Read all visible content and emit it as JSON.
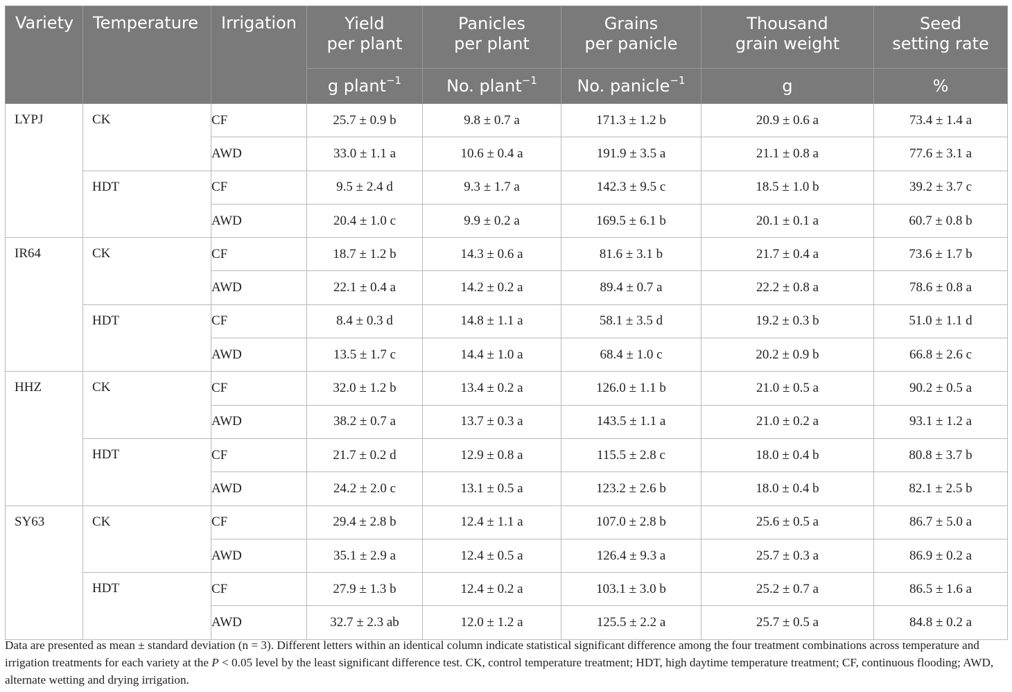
{
  "headers": {
    "variety": "Variety",
    "temperature": "Temperature",
    "irrigation": "Irrigation",
    "columns": [
      {
        "line1": "Yield",
        "line2": "per plant",
        "unit": "g plant",
        "unit_sup": "−1"
      },
      {
        "line1": "Panicles",
        "line2": "per plant",
        "unit": "No. plant",
        "unit_sup": "−1"
      },
      {
        "line1": "Grains",
        "line2": "per panicle",
        "unit": "No. panicle",
        "unit_sup": "−1"
      },
      {
        "line1": "Thousand",
        "line2": "grain weight",
        "unit": "g",
        "unit_sup": ""
      },
      {
        "line1": "Seed",
        "line2": "setting rate",
        "unit": "%",
        "unit_sup": ""
      }
    ]
  },
  "groups": [
    {
      "variety": "LYPJ",
      "temps": [
        {
          "temp": "CK",
          "rows": [
            {
              "irr": "CF",
              "vals": [
                "25.7 ± 0.9 b",
                "9.8 ± 0.7 a",
                "171.3 ± 1.2 b",
                "20.9 ± 0.6 a",
                "73.4 ± 1.4 a"
              ]
            },
            {
              "irr": "AWD",
              "vals": [
                "33.0 ± 1.1 a",
                "10.6 ± 0.4 a",
                "191.9 ± 3.5 a",
                "21.1 ± 0.8 a",
                "77.6 ± 3.1 a"
              ]
            }
          ]
        },
        {
          "temp": "HDT",
          "rows": [
            {
              "irr": "CF",
              "vals": [
                "9.5 ± 2.4 d",
                "9.3 ± 1.7 a",
                "142.3 ± 9.5 c",
                "18.5 ± 1.0 b",
                "39.2 ± 3.7 c"
              ]
            },
            {
              "irr": "AWD",
              "vals": [
                "20.4 ± 1.0 c",
                "9.9 ± 0.2 a",
                "169.5 ± 6.1 b",
                "20.1 ± 0.1 a",
                "60.7 ± 0.8 b"
              ]
            }
          ]
        }
      ]
    },
    {
      "variety": "IR64",
      "temps": [
        {
          "temp": "CK",
          "rows": [
            {
              "irr": "CF",
              "vals": [
                "18.7 ± 1.2 b",
                "14.3 ± 0.6 a",
                "81.6 ± 3.1 b",
                "21.7 ± 0.4 a",
                "73.6 ± 1.7 b"
              ]
            },
            {
              "irr": "AWD",
              "vals": [
                "22.1 ± 0.4 a",
                "14.2 ± 0.2 a",
                "89.4 ± 0.7 a",
                "22.2 ± 0.8 a",
                "78.6 ± 0.8 a"
              ]
            }
          ]
        },
        {
          "temp": "HDT",
          "rows": [
            {
              "irr": "CF",
              "vals": [
                "8.4 ± 0.3 d",
                "14.8 ± 1.1 a",
                "58.1 ± 3.5 d",
                "19.2 ± 0.3 b",
                "51.0 ± 1.1 d"
              ]
            },
            {
              "irr": "AWD",
              "vals": [
                "13.5 ± 1.7 c",
                "14.4 ± 1.0 a",
                "68.4 ± 1.0 c",
                "20.2 ± 0.9 b",
                "66.8 ± 2.6 c"
              ]
            }
          ]
        }
      ]
    },
    {
      "variety": "HHZ",
      "temps": [
        {
          "temp": "CK",
          "rows": [
            {
              "irr": "CF",
              "vals": [
                "32.0 ± 1.2 b",
                "13.4 ± 0.2 a",
                "126.0 ± 1.1 b",
                "21.0 ± 0.5 a",
                "90.2 ± 0.5 a"
              ]
            },
            {
              "irr": "AWD",
              "vals": [
                "38.2 ± 0.7 a",
                "13.7 ± 0.3 a",
                "143.5 ± 1.1 a",
                "21.0 ± 0.2 a",
                "93.1 ± 1.2 a"
              ]
            }
          ]
        },
        {
          "temp": "HDT",
          "rows": [
            {
              "irr": "CF",
              "vals": [
                "21.7 ± 0.2 d",
                "12.9 ± 0.8 a",
                "115.5 ± 2.8 c",
                "18.0 ± 0.4 b",
                "80.8 ± 3.7 b"
              ]
            },
            {
              "irr": "AWD",
              "vals": [
                "24.2 ± 2.0 c",
                "13.1 ± 0.5 a",
                "123.2 ± 2.6 b",
                "18.0 ± 0.4 b",
                "82.1 ± 2.5 b"
              ]
            }
          ]
        }
      ]
    },
    {
      "variety": "SY63",
      "temps": [
        {
          "temp": "CK",
          "rows": [
            {
              "irr": "CF",
              "vals": [
                "29.4 ± 2.8 b",
                "12.4 ± 1.1 a",
                "107.0 ± 2.8 b",
                "25.6 ± 0.5 a",
                "86.7 ± 5.0 a"
              ]
            },
            {
              "irr": "AWD",
              "vals": [
                "35.1 ± 2.9 a",
                "12.4 ± 0.5 a",
                "126.4 ± 9.3 a",
                "25.7 ± 0.3 a",
                "86.9 ± 0.2 a"
              ]
            }
          ]
        },
        {
          "temp": "HDT",
          "rows": [
            {
              "irr": "CF",
              "vals": [
                "27.9 ± 1.3 b",
                "12.4 ± 0.2 a",
                "103.1 ± 3.0 b",
                "25.2 ± 0.7 a",
                "86.5 ± 1.6 a"
              ]
            },
            {
              "irr": "AWD",
              "vals": [
                "32.7 ± 2.3 ab",
                "12.0 ± 1.2 a",
                "125.5 ± 2.2 a",
                "25.7 ± 0.5 a",
                "84.8 ± 0.2 a"
              ]
            }
          ]
        }
      ]
    }
  ],
  "footnote": {
    "part1": "Data are presented as mean ± standard deviation (n = 3). Different letters within an identical column indicate statistical significant difference among the four treatment combinations across temperature and irrigation treatments for each variety at the ",
    "p": "P",
    "part2": " < 0.05 level by the least significant difference test. CK, control temperature treatment; HDT, high daytime temperature treatment; CF, continuous flooding; AWD, alternate wetting and drying irrigation."
  },
  "colors": {
    "header_bg": "#7a7a7a",
    "header_text": "#ffffff",
    "grid": "#b9b9b9",
    "body_text": "#222222"
  }
}
